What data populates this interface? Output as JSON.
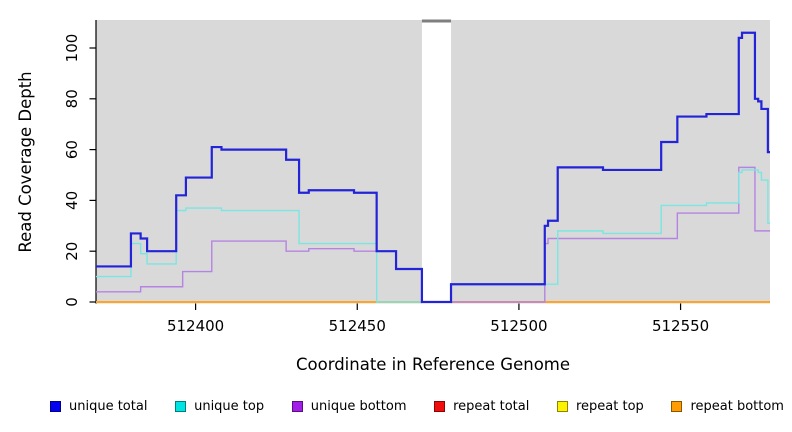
{
  "chart": {
    "panel_bg": "#d9d9d9",
    "outer_bg": "#ffffff",
    "axis_color": "#000000",
    "gap_band_color": "#ffffff",
    "gap_top_marker_color": "#7f7f7f"
  },
  "chart_data": {
    "type": "line",
    "subtype": "step-coverage",
    "title": "",
    "xlabel": "Coordinate in Reference Genome",
    "ylabel": "Read Coverage Depth",
    "xlim": [
      512369,
      512578
    ],
    "ylim": [
      0,
      111
    ],
    "x_ticks": [
      512400,
      512450,
      512500,
      512550
    ],
    "y_ticks": [
      0,
      20,
      40,
      60,
      80,
      100
    ],
    "grid": false,
    "legend_position": "bottom",
    "gap_region": {
      "x_start": 512470,
      "x_end": 512479
    },
    "series": [
      {
        "name": "unique total",
        "line_color": "#2323d7",
        "legend_color": "#0202f0",
        "width": 2.2,
        "z": 6,
        "points": [
          [
            512369,
            14
          ],
          [
            512380,
            27
          ],
          [
            512383,
            25
          ],
          [
            512385,
            20
          ],
          [
            512394,
            42
          ],
          [
            512397,
            49
          ],
          [
            512405,
            61
          ],
          [
            512408,
            60
          ],
          [
            512428,
            56
          ],
          [
            512432,
            43
          ],
          [
            512435,
            44
          ],
          [
            512449,
            43
          ],
          [
            512456,
            20
          ],
          [
            512462,
            13
          ],
          [
            512470,
            0
          ],
          [
            512479,
            7
          ],
          [
            512508,
            30
          ],
          [
            512509,
            32
          ],
          [
            512512,
            53
          ],
          [
            512526,
            52
          ],
          [
            512544,
            63
          ],
          [
            512549,
            73
          ],
          [
            512558,
            74
          ],
          [
            512568,
            104
          ],
          [
            512569,
            106
          ],
          [
            512573,
            80
          ],
          [
            512574,
            79
          ],
          [
            512575,
            76
          ],
          [
            512577,
            59
          ]
        ]
      },
      {
        "name": "unique top",
        "line_color": "#7ae6e2",
        "legend_color": "#00e3e3",
        "width": 1.4,
        "z": 5,
        "points": [
          [
            512369,
            10
          ],
          [
            512380,
            23
          ],
          [
            512383,
            19
          ],
          [
            512385,
            15
          ],
          [
            512394,
            36
          ],
          [
            512397,
            37
          ],
          [
            512408,
            36
          ],
          [
            512432,
            23
          ],
          [
            512456,
            0
          ],
          [
            512479,
            7
          ],
          [
            512512,
            28
          ],
          [
            512526,
            27
          ],
          [
            512544,
            38
          ],
          [
            512558,
            39
          ],
          [
            512568,
            51
          ],
          [
            512569,
            52
          ],
          [
            512574,
            51
          ],
          [
            512575,
            48
          ],
          [
            512577,
            31
          ]
        ]
      },
      {
        "name": "unique bottom",
        "line_color": "#b584e2",
        "legend_color": "#a21ee8",
        "width": 1.4,
        "z": 4,
        "points": [
          [
            512369,
            4
          ],
          [
            512383,
            6
          ],
          [
            512396,
            12
          ],
          [
            512405,
            24
          ],
          [
            512428,
            20
          ],
          [
            512435,
            21
          ],
          [
            512449,
            20
          ],
          [
            512462,
            13
          ],
          [
            512470,
            0
          ],
          [
            512508,
            23
          ],
          [
            512509,
            25
          ],
          [
            512549,
            35
          ],
          [
            512568,
            53
          ],
          [
            512573,
            28
          ]
        ]
      },
      {
        "name": "repeat total",
        "line_color": "#e60000",
        "legend_color": "#f20d0d",
        "width": 1.4,
        "z": 1,
        "points": [
          [
            512369,
            0
          ]
        ]
      },
      {
        "name": "repeat top",
        "line_color": "#fff200",
        "legend_color": "#fdf200",
        "width": 1.4,
        "z": 2,
        "points": [
          [
            512369,
            0
          ]
        ]
      },
      {
        "name": "repeat bottom",
        "line_color": "#ffa424",
        "legend_color": "#ff9d00",
        "width": 2,
        "z": 3,
        "points": [
          [
            512369,
            0
          ]
        ]
      }
    ]
  }
}
